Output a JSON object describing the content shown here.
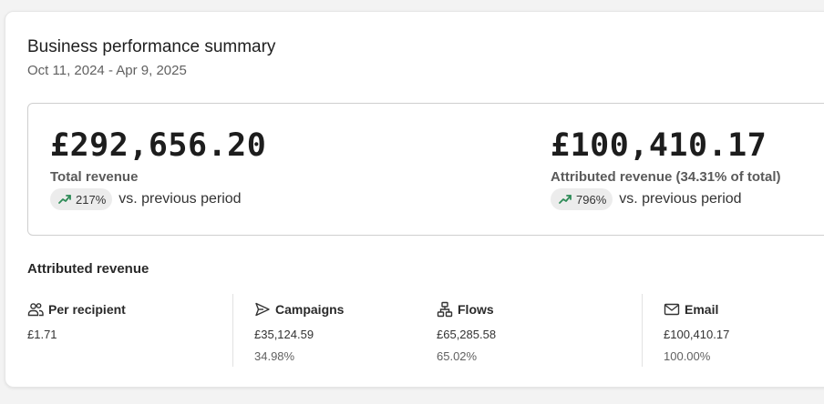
{
  "summary": {
    "title": "Business performance summary",
    "date_range": "Oct 11, 2024 - Apr 9, 2025"
  },
  "revenue": {
    "total": {
      "value": "£292,656.20",
      "label": "Total revenue",
      "change": "217%",
      "change_suffix": "vs. previous period"
    },
    "attributed": {
      "value": "£100,410.17",
      "label": "Attributed revenue (34.31% of total)",
      "change": "796%",
      "change_suffix": "vs. previous period"
    }
  },
  "attributed_section": {
    "title": "Attributed revenue",
    "metrics": [
      {
        "icon": "people-icon",
        "label": "Per recipient",
        "value": "£1.71",
        "pct": ""
      },
      {
        "icon": "send-icon",
        "label": "Campaigns",
        "value": "£35,124.59",
        "pct": "34.98%"
      },
      {
        "icon": "flow-icon",
        "label": "Flows",
        "value": "£65,285.58",
        "pct": "65.02%"
      },
      {
        "icon": "mail-icon",
        "label": "Email",
        "value": "£100,410.17",
        "pct": "100.00%"
      }
    ]
  },
  "colors": {
    "trend_up": "#2e8b57",
    "pill_bg": "#ececec"
  }
}
